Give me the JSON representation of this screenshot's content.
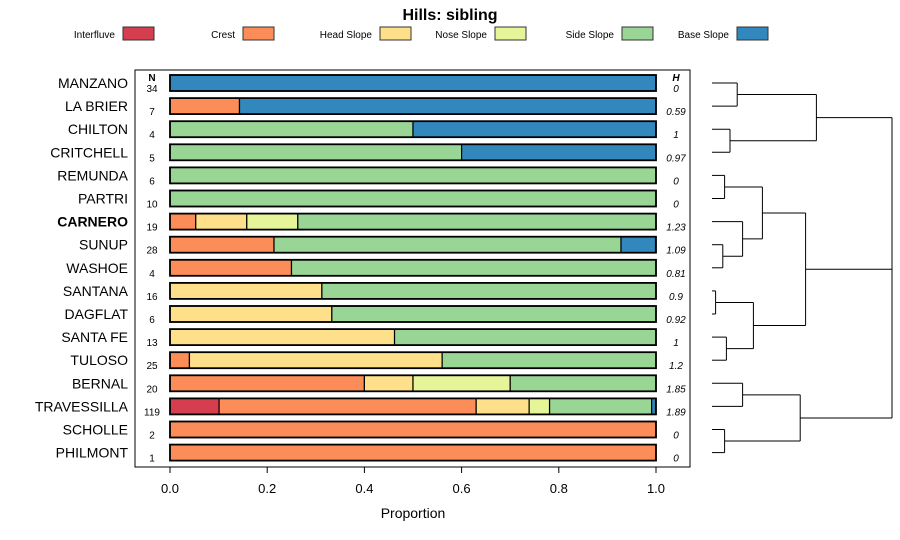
{
  "chart_data": {
    "type": "bar",
    "orientation": "horizontal-stacked",
    "title": "Hills: sibling",
    "xlabel": "Proportion",
    "xlim": [
      0,
      1
    ],
    "xticks": [
      "0.0",
      "0.2",
      "0.4",
      "0.6",
      "0.8",
      "1.0"
    ],
    "n_header": "N",
    "h_header": "H",
    "legend_position": "top",
    "series": [
      {
        "name": "Interfluve",
        "color": "#D53E4F"
      },
      {
        "name": "Crest",
        "color": "#FC8D59"
      },
      {
        "name": "Head Slope",
        "color": "#FEE08B"
      },
      {
        "name": "Nose Slope",
        "color": "#E6F598"
      },
      {
        "name": "Side Slope",
        "color": "#99D594"
      },
      {
        "name": "Base Slope",
        "color": "#3288BD"
      }
    ],
    "rows": [
      {
        "label": "MANZANO",
        "n": "34",
        "h": "0",
        "bold": false,
        "values": [
          0,
          0,
          0,
          0,
          0,
          1
        ]
      },
      {
        "label": "LA BRIER",
        "n": "7",
        "h": "0.59",
        "bold": false,
        "values": [
          0,
          0.143,
          0,
          0,
          0,
          0.857
        ]
      },
      {
        "label": "CHILTON",
        "n": "4",
        "h": "1",
        "bold": false,
        "values": [
          0,
          0,
          0,
          0,
          0.5,
          0.5
        ]
      },
      {
        "label": "CRITCHELL",
        "n": "5",
        "h": "0.97",
        "bold": false,
        "values": [
          0,
          0,
          0,
          0,
          0.6,
          0.4
        ]
      },
      {
        "label": "REMUNDA",
        "n": "6",
        "h": "0",
        "bold": false,
        "values": [
          0,
          0,
          0,
          0,
          1,
          0
        ]
      },
      {
        "label": "PARTRI",
        "n": "10",
        "h": "0",
        "bold": false,
        "values": [
          0,
          0,
          0,
          0,
          1,
          0
        ]
      },
      {
        "label": "CARNERO",
        "n": "19",
        "h": "1.23",
        "bold": true,
        "values": [
          0,
          0.053,
          0.105,
          0.105,
          0.737,
          0
        ]
      },
      {
        "label": "SUNUP",
        "n": "28",
        "h": "1.09",
        "bold": false,
        "values": [
          0,
          0.214,
          0,
          0,
          0.714,
          0.071
        ]
      },
      {
        "label": "WASHOE",
        "n": "4",
        "h": "0.81",
        "bold": false,
        "values": [
          0,
          0.25,
          0,
          0,
          0.75,
          0
        ]
      },
      {
        "label": "SANTANA",
        "n": "16",
        "h": "0.9",
        "bold": false,
        "values": [
          0,
          0,
          0.3125,
          0,
          0.6875,
          0
        ]
      },
      {
        "label": "DAGFLAT",
        "n": "6",
        "h": "0.92",
        "bold": false,
        "values": [
          0,
          0,
          0.333,
          0,
          0.667,
          0
        ]
      },
      {
        "label": "SANTA FE",
        "n": "13",
        "h": "1",
        "bold": false,
        "values": [
          0,
          0,
          0.462,
          0,
          0.538,
          0
        ]
      },
      {
        "label": "TULOSO",
        "n": "25",
        "h": "1.2",
        "bold": false,
        "values": [
          0,
          0.04,
          0.52,
          0,
          0.44,
          0
        ]
      },
      {
        "label": "BERNAL",
        "n": "20",
        "h": "1.85",
        "bold": false,
        "values": [
          0,
          0.4,
          0.1,
          0.2,
          0.3,
          0
        ]
      },
      {
        "label": "TRAVESSILLA",
        "n": "119",
        "h": "1.89",
        "bold": false,
        "values": [
          0.101,
          0.529,
          0.109,
          0.042,
          0.21,
          0.008
        ]
      },
      {
        "label": "SCHOLLE",
        "n": "2",
        "h": "0",
        "bold": false,
        "values": [
          0,
          1,
          0,
          0,
          0,
          0
        ]
      },
      {
        "label": "PHILMONT",
        "n": "1",
        "h": "0",
        "bold": false,
        "values": [
          0,
          1,
          0,
          0,
          0,
          0
        ]
      }
    ],
    "dendrogram": {
      "h": 1.0,
      "children": [
        {
          "h": 0.58,
          "children": [
            {
              "h": 0.14,
              "children": [
                0,
                1
              ]
            },
            {
              "h": 0.1,
              "children": [
                2,
                3
              ]
            }
          ]
        },
        {
          "h": 0.52,
          "children": [
            {
              "h": 0.28,
              "children": [
                {
                  "h": 0.07,
                  "children": [
                    4,
                    5
                  ]
                },
                {
                  "h": 0.17,
                  "children": [
                    6,
                    {
                      "h": 0.06,
                      "children": [
                        7,
                        8
                      ]
                    }
                  ]
                }
              ]
            },
            {
              "h": 0.23,
              "children": [
                {
                  "h": 0.02,
                  "children": [
                    9,
                    10
                  ]
                },
                {
                  "h": 0.08,
                  "children": [
                    11,
                    12
                  ]
                }
              ]
            }
          ]
        },
        {
          "h": 0.49,
          "children": [
            {
              "h": 0.17,
              "children": [
                13,
                14
              ]
            },
            {
              "h": 0.07,
              "children": [
                15,
                16
              ]
            }
          ]
        }
      ]
    }
  }
}
